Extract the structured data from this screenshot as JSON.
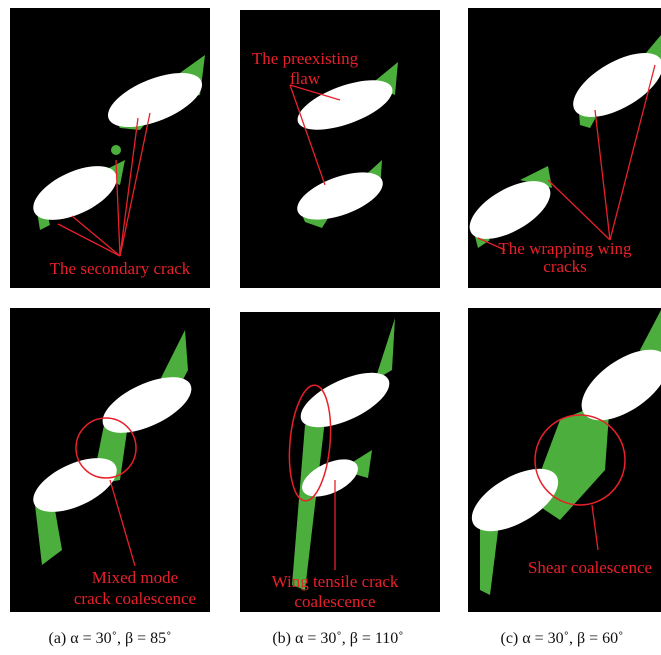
{
  "panels": [
    {
      "top_annotation": [
        "The secondary crack"
      ],
      "bottom_annotation": [
        "Mixed mode",
        "crack coalescence"
      ],
      "caption": "(a) α = 30˚, β = 85˚"
    },
    {
      "top_annotation": [
        "The preexisting",
        "flaw"
      ],
      "bottom_annotation": [
        "Wing tensile crack",
        "coalescence"
      ],
      "caption": "(b) α = 30˚, β = 110˚"
    },
    {
      "top_annotation": [
        "The wrapping wing",
        "cracks"
      ],
      "bottom_annotation": [
        "Shear coalescence"
      ],
      "caption": "(c) α = 30˚, β = 60˚"
    }
  ]
}
